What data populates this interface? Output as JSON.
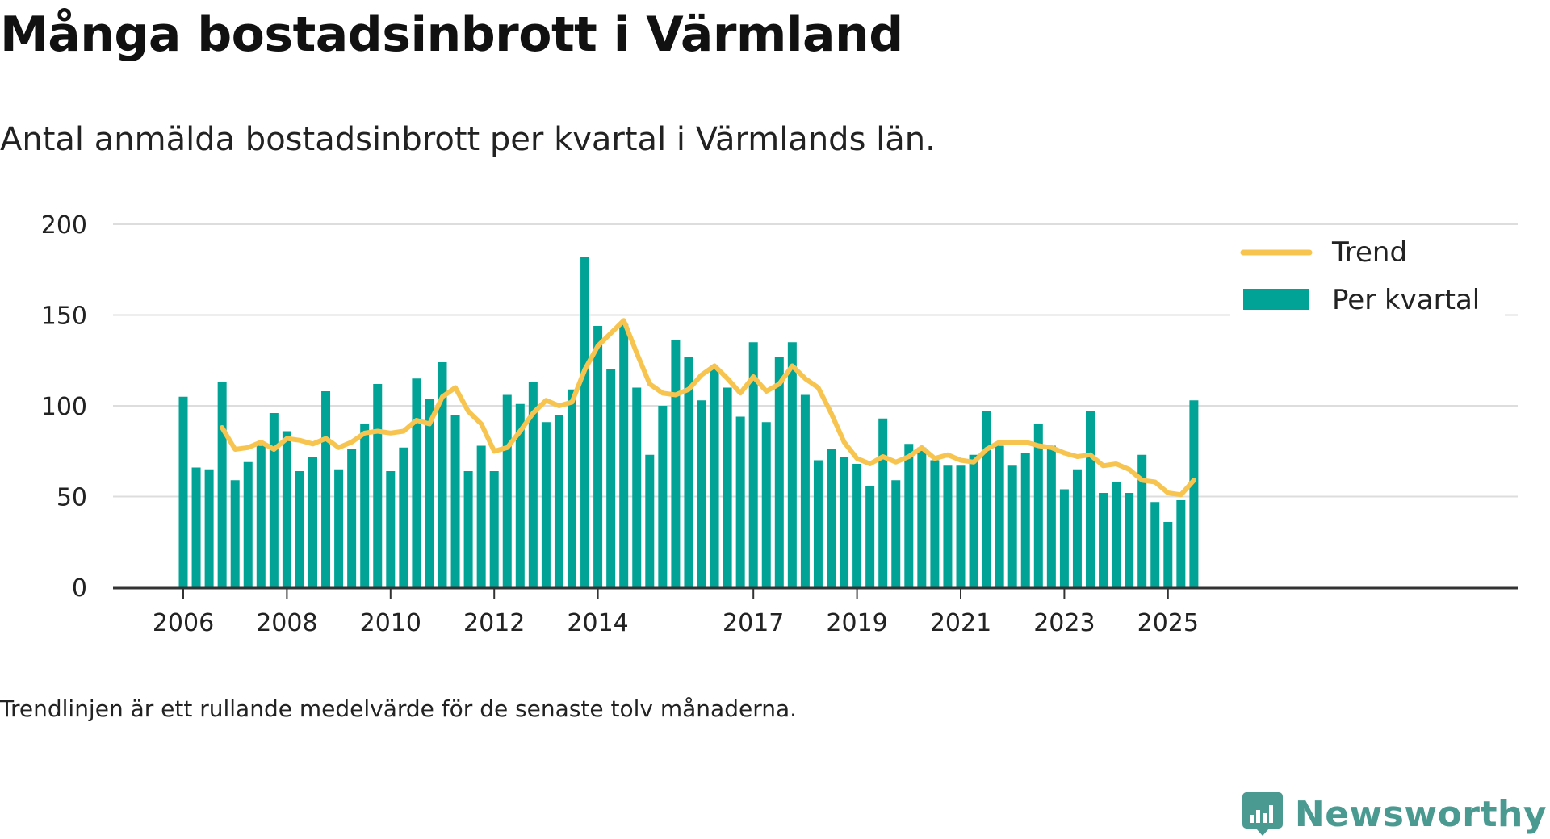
{
  "title": "Många bostadsinbrott i Värmland",
  "subtitle": "Antal anmälda bostadsinbrott per kvartal i Värmlands län.",
  "note": "Trendlinjen är ett rullande medelvärde för de senaste tolv månaderna.",
  "brand": "Newsworthy",
  "colors": {
    "bar": "#00a396",
    "trend": "#f7c54f",
    "grid": "#dddddd",
    "axis": "#333333",
    "text": "#222222",
    "brand": "#4a9a92"
  },
  "chart_data": {
    "type": "bar",
    "title": "Många bostadsinbrott i Värmland",
    "xlabel": "",
    "ylabel": "",
    "ylim": [
      0,
      200
    ],
    "yticks": [
      0,
      50,
      100,
      150,
      200
    ],
    "xtick_labels": [
      {
        "label": "2006",
        "index": 0
      },
      {
        "label": "2008",
        "index": 8
      },
      {
        "label": "2010",
        "index": 16
      },
      {
        "label": "2012",
        "index": 24
      },
      {
        "label": "2014",
        "index": 32
      },
      {
        "label": "2017",
        "index": 44
      },
      {
        "label": "2019",
        "index": 52
      },
      {
        "label": "2021",
        "index": 60
      },
      {
        "label": "2023",
        "index": 68
      },
      {
        "label": "2025",
        "index": 76
      }
    ],
    "legend": {
      "position": "top-right",
      "entries": [
        "Trend",
        "Per kvartal"
      ]
    },
    "categories": [
      "2006 K1",
      "2006 K2",
      "2006 K3",
      "2006 K4",
      "2007 K1",
      "2007 K2",
      "2007 K3",
      "2007 K4",
      "2008 K1",
      "2008 K2",
      "2008 K3",
      "2008 K4",
      "2009 K1",
      "2009 K2",
      "2009 K3",
      "2009 K4",
      "2010 K1",
      "2010 K2",
      "2010 K3",
      "2010 K4",
      "2011 K1",
      "2011 K2",
      "2011 K3",
      "2011 K4",
      "2012 K1",
      "2012 K2",
      "2012 K3",
      "2012 K4",
      "2013 K1",
      "2013 K2",
      "2013 K3",
      "2013 K4",
      "2014 K1",
      "2014 K2",
      "2014 K3",
      "2014 K4",
      "2015 K1",
      "2015 K2",
      "2015 K3",
      "2015 K4",
      "2016 K1",
      "2016 K2",
      "2016 K3",
      "2016 K4",
      "2017 K1",
      "2017 K2",
      "2017 K3",
      "2017 K4",
      "2018 K1",
      "2018 K2",
      "2018 K3",
      "2018 K4",
      "2019 K1",
      "2019 K2",
      "2019 K3",
      "2019 K4",
      "2020 K1",
      "2020 K2",
      "2020 K3",
      "2020 K4",
      "2021 K1",
      "2021 K2",
      "2021 K3",
      "2021 K4",
      "2022 K1",
      "2022 K2",
      "2022 K3",
      "2022 K4",
      "2023 K1",
      "2023 K2",
      "2023 K3",
      "2023 K4",
      "2024 K1",
      "2024 K2",
      "2024 K3",
      "2024 K4",
      "2025 K1",
      "2025 K2",
      "2025 K3"
    ],
    "series": [
      {
        "name": "Per kvartal",
        "type": "bar",
        "values": [
          105,
          66,
          65,
          113,
          59,
          69,
          78,
          96,
          86,
          64,
          72,
          108,
          65,
          76,
          90,
          112,
          64,
          77,
          115,
          104,
          124,
          95,
          64,
          78,
          64,
          106,
          101,
          113,
          91,
          95,
          109,
          182,
          144,
          120,
          145,
          110,
          73,
          100,
          136,
          127,
          103,
          120,
          110,
          94,
          135,
          91,
          127,
          135,
          106,
          70,
          76,
          72,
          68,
          56,
          93,
          59,
          79,
          77,
          70,
          67,
          67,
          73,
          97,
          78,
          67,
          74,
          90,
          78,
          54,
          65,
          97,
          52,
          58,
          52,
          73,
          47,
          36,
          48,
          103
        ]
      },
      {
        "name": "Trend",
        "type": "line",
        "values": [
          null,
          null,
          null,
          88,
          76,
          77,
          80,
          76,
          82,
          81,
          79,
          82,
          77,
          80,
          85,
          86,
          85,
          86,
          92,
          90,
          105,
          110,
          97,
          90,
          75,
          77,
          86,
          96,
          103,
          100,
          102,
          120,
          133,
          140,
          147,
          129,
          112,
          107,
          106,
          109,
          117,
          122,
          115,
          107,
          116,
          108,
          112,
          122,
          115,
          110,
          96,
          80,
          71,
          68,
          72,
          69,
          72,
          77,
          71,
          73,
          70,
          69,
          76,
          80,
          80,
          80,
          78,
          77,
          74,
          72,
          73,
          67,
          68,
          65,
          59,
          58,
          52,
          51,
          59
        ]
      }
    ]
  }
}
